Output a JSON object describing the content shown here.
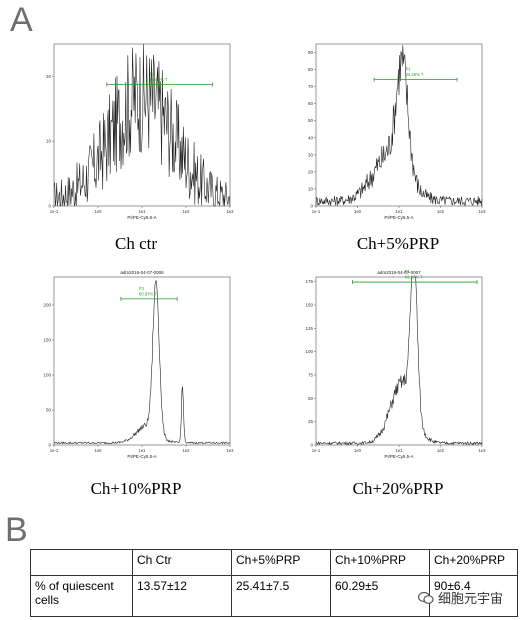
{
  "panels": {
    "a": "A",
    "b": "B"
  },
  "chart_data": [
    {
      "type": "line",
      "caption": "Ch ctr",
      "header": "",
      "gate": {
        "name": "P1",
        "value": "14.95% T"
      },
      "xlabel": "PI/PE-Cy5.5-A",
      "xticks": [
        "1e-1",
        "1e0",
        "1e1",
        "1e2",
        "1e3"
      ],
      "yticks": [
        "0",
        "10",
        "20"
      ],
      "ylim": [
        0,
        25
      ],
      "peaks": [
        {
          "center": 0.5,
          "width": 0.18,
          "height": 16
        }
      ],
      "noise": 4,
      "base": 1
    },
    {
      "type": "line",
      "caption": "Ch+5%PRP",
      "header": "",
      "gate": {
        "name": "P1",
        "value": "24.26% T"
      },
      "xlabel": "PI/PE-Cy5.5-A",
      "xticks": [
        "1e-1",
        "1e0",
        "1e1",
        "1e2",
        "1e3"
      ],
      "yticks": [
        "0",
        "10",
        "20",
        "30",
        "40",
        "50",
        "60",
        "70",
        "80",
        "90"
      ],
      "ylim": [
        0,
        95
      ],
      "peaks": [
        {
          "center": 0.52,
          "width": 0.035,
          "height": 60
        },
        {
          "center": 0.45,
          "width": 0.1,
          "height": 28
        }
      ],
      "noise": 6,
      "base": 3
    },
    {
      "type": "line",
      "caption": "Ch+10%PRP",
      "header": "adm2016-04-07-0006",
      "gate": {
        "name": "P1",
        "value": "60.97% T"
      },
      "xlabel": "PI/PE-Cy5.5-A",
      "xticks": [
        "1e-1",
        "1e0",
        "1e1",
        "1e2",
        "1e3"
      ],
      "yticks": [
        "0",
        "50",
        "100",
        "150",
        "200"
      ],
      "ylim": [
        0,
        240
      ],
      "peaks": [
        {
          "center": 0.58,
          "width": 0.018,
          "height": 215
        },
        {
          "center": 0.53,
          "width": 0.06,
          "height": 25
        },
        {
          "center": 0.73,
          "width": 0.006,
          "height": 80
        }
      ],
      "noise": 5,
      "base": 3
    },
    {
      "type": "line",
      "caption": "Ch+20%PRP",
      "header": "adm2016-04-07-0007",
      "gate": {
        "name": "P1",
        "value": "93.27% T"
      },
      "xlabel": "PI/PE-Cy5.5-A",
      "xticks": [
        "1e-1",
        "1e0",
        "1e1",
        "1e2",
        "1e3"
      ],
      "yticks": [
        "0",
        "25",
        "50",
        "75",
        "100",
        "125",
        "150",
        "175"
      ],
      "ylim": [
        0,
        180
      ],
      "peaks": [
        {
          "center": 0.59,
          "width": 0.02,
          "height": 165
        },
        {
          "center": 0.52,
          "width": 0.07,
          "height": 65
        }
      ],
      "noise": 6,
      "base": 2
    }
  ],
  "table": {
    "header": [
      "",
      "Ch Ctr",
      "Ch+5%PRP",
      "Ch+10%PRP",
      "Ch+20%PRP"
    ],
    "row_label": "% of quiescent cells",
    "values": [
      "13.57±12",
      "25.41±7.5",
      "60.29±5",
      "90±6.4"
    ]
  },
  "watermark": "细胞元宇宙"
}
